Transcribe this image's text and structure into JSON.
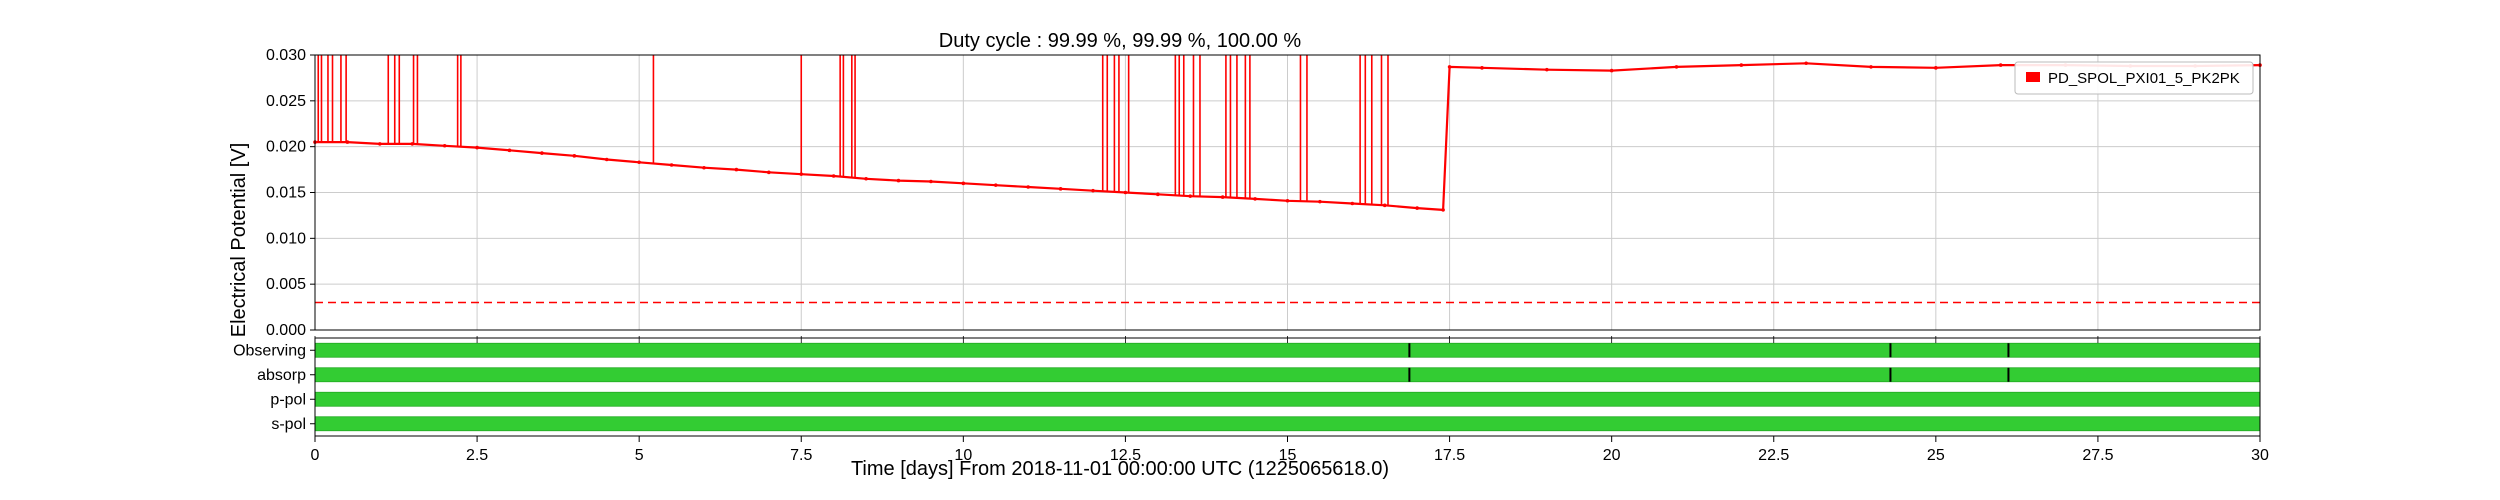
{
  "chart_data": {
    "type": "line",
    "title": "Duty cycle : 99.99 %, 99.99 %, 100.00 %",
    "xlabel": "Time [days] From 2018-11-01 00:00:00 UTC (1225065618.0)",
    "ylabel": "Electrical Potential [V]",
    "xlim": [
      0,
      30
    ],
    "ylim": [
      0,
      0.03
    ],
    "x_ticks": [
      "0",
      "2.5",
      "5",
      "7.5",
      "10",
      "12.5",
      "15",
      "17.5",
      "20",
      "22.5",
      "25",
      "27.5",
      "30"
    ],
    "y_ticks": [
      "0.000",
      "0.005",
      "0.010",
      "0.015",
      "0.020",
      "0.025",
      "0.030"
    ],
    "grid": true,
    "legend_position": "top-right",
    "series": [
      {
        "name": "PD_SPOL_PXI01_5_PK2PK",
        "color": "#ff0000",
        "x": [
          0,
          0.5,
          1,
          1.5,
          2,
          2.5,
          3,
          3.5,
          4,
          4.5,
          5,
          5.5,
          6,
          6.5,
          7,
          7.5,
          8,
          8.5,
          9,
          9.5,
          10,
          10.5,
          11,
          11.5,
          12,
          12.5,
          13,
          13.5,
          14,
          14.5,
          15,
          15.5,
          16,
          16.5,
          17,
          17.4,
          17.5,
          18,
          19,
          20,
          21,
          22,
          23,
          24,
          25,
          26,
          27,
          28,
          29,
          30
        ],
        "y": [
          0.0205,
          0.0205,
          0.0203,
          0.0203,
          0.0201,
          0.0199,
          0.0196,
          0.0193,
          0.019,
          0.0186,
          0.0183,
          0.018,
          0.0177,
          0.0175,
          0.0172,
          0.017,
          0.0168,
          0.0165,
          0.0163,
          0.0162,
          0.016,
          0.0158,
          0.0156,
          0.0154,
          0.0152,
          0.015,
          0.0148,
          0.0146,
          0.0145,
          0.0143,
          0.0141,
          0.014,
          0.0138,
          0.0136,
          0.0133,
          0.0131,
          0.0287,
          0.0286,
          0.0284,
          0.0283,
          0.0287,
          0.0289,
          0.0291,
          0.0287,
          0.0286,
          0.0289,
          0.0289,
          0.0288,
          0.0288,
          0.0289
        ]
      }
    ],
    "spikes_to_top": [
      0.05,
      0.1,
      0.2,
      0.27,
      0.4,
      0.48,
      1.13,
      1.23,
      1.3,
      1.52,
      1.58,
      2.2,
      2.25,
      5.22,
      7.5,
      8.1,
      8.15,
      8.28,
      8.33,
      12.15,
      12.22,
      12.33,
      12.4,
      12.55,
      13.27,
      13.33,
      13.4,
      13.55,
      13.65,
      14.05,
      14.12,
      14.22,
      14.35,
      14.42,
      15.2,
      15.3,
      16.12,
      16.2,
      16.3,
      16.45,
      16.55
    ],
    "threshold": {
      "y": 0.003,
      "color": "#ff0000",
      "style": "dashed"
    },
    "state_bars": [
      {
        "label": "Observing",
        "color": "#33cc33",
        "gaps": [
          16.88,
          24.3,
          26.12
        ]
      },
      {
        "label": "absorp",
        "color": "#33cc33",
        "gaps": [
          16.88,
          24.3,
          26.12
        ]
      },
      {
        "label": "p-pol",
        "color": "#33cc33",
        "gaps": []
      },
      {
        "label": "s-pol",
        "color": "#33cc33",
        "gaps": []
      }
    ]
  }
}
